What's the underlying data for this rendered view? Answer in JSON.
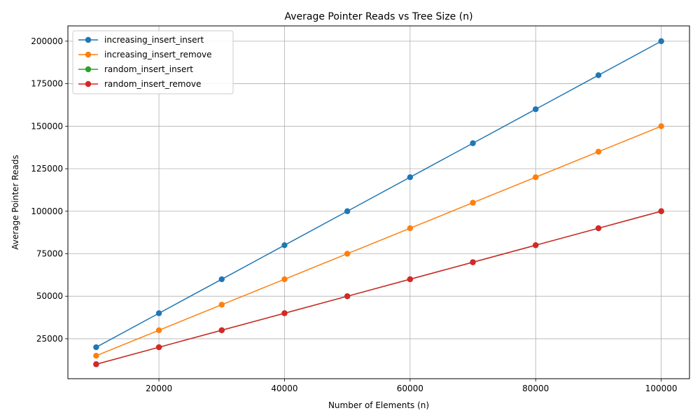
{
  "chart_data": {
    "type": "line",
    "title": "Average Pointer Reads vs Tree Size (n)",
    "xlabel": "Number of Elements (n)",
    "ylabel": "Average Pointer Reads",
    "x": [
      10000,
      20000,
      30000,
      40000,
      50000,
      60000,
      70000,
      80000,
      90000,
      100000
    ],
    "xlim": [
      5500,
      104500
    ],
    "ylim": [
      1500,
      209000
    ],
    "xticks": [
      20000,
      40000,
      60000,
      80000,
      100000
    ],
    "yticks": [
      25000,
      50000,
      75000,
      100000,
      125000,
      150000,
      175000,
      200000
    ],
    "grid": true,
    "legend_position": "top-left",
    "marker": "circle",
    "series": [
      {
        "name": "increasing_insert_insert",
        "color": "#1f77b4",
        "values": [
          20000,
          40000,
          60000,
          80000,
          100000,
          120000,
          140000,
          160000,
          180000,
          200000
        ]
      },
      {
        "name": "increasing_insert_remove",
        "color": "#ff7f0e",
        "values": [
          15000,
          30000,
          45000,
          60000,
          75000,
          90000,
          105000,
          120000,
          135000,
          150000
        ]
      },
      {
        "name": "random_insert_insert",
        "color": "#2ca02c",
        "values": [
          10000,
          20000,
          30000,
          40000,
          50000,
          60000,
          70000,
          80000,
          90000,
          100000
        ]
      },
      {
        "name": "random_insert_remove",
        "color": "#d62728",
        "values": [
          10000,
          20000,
          30000,
          40000,
          50000,
          60000,
          70000,
          80000,
          90000,
          100000
        ]
      }
    ]
  }
}
